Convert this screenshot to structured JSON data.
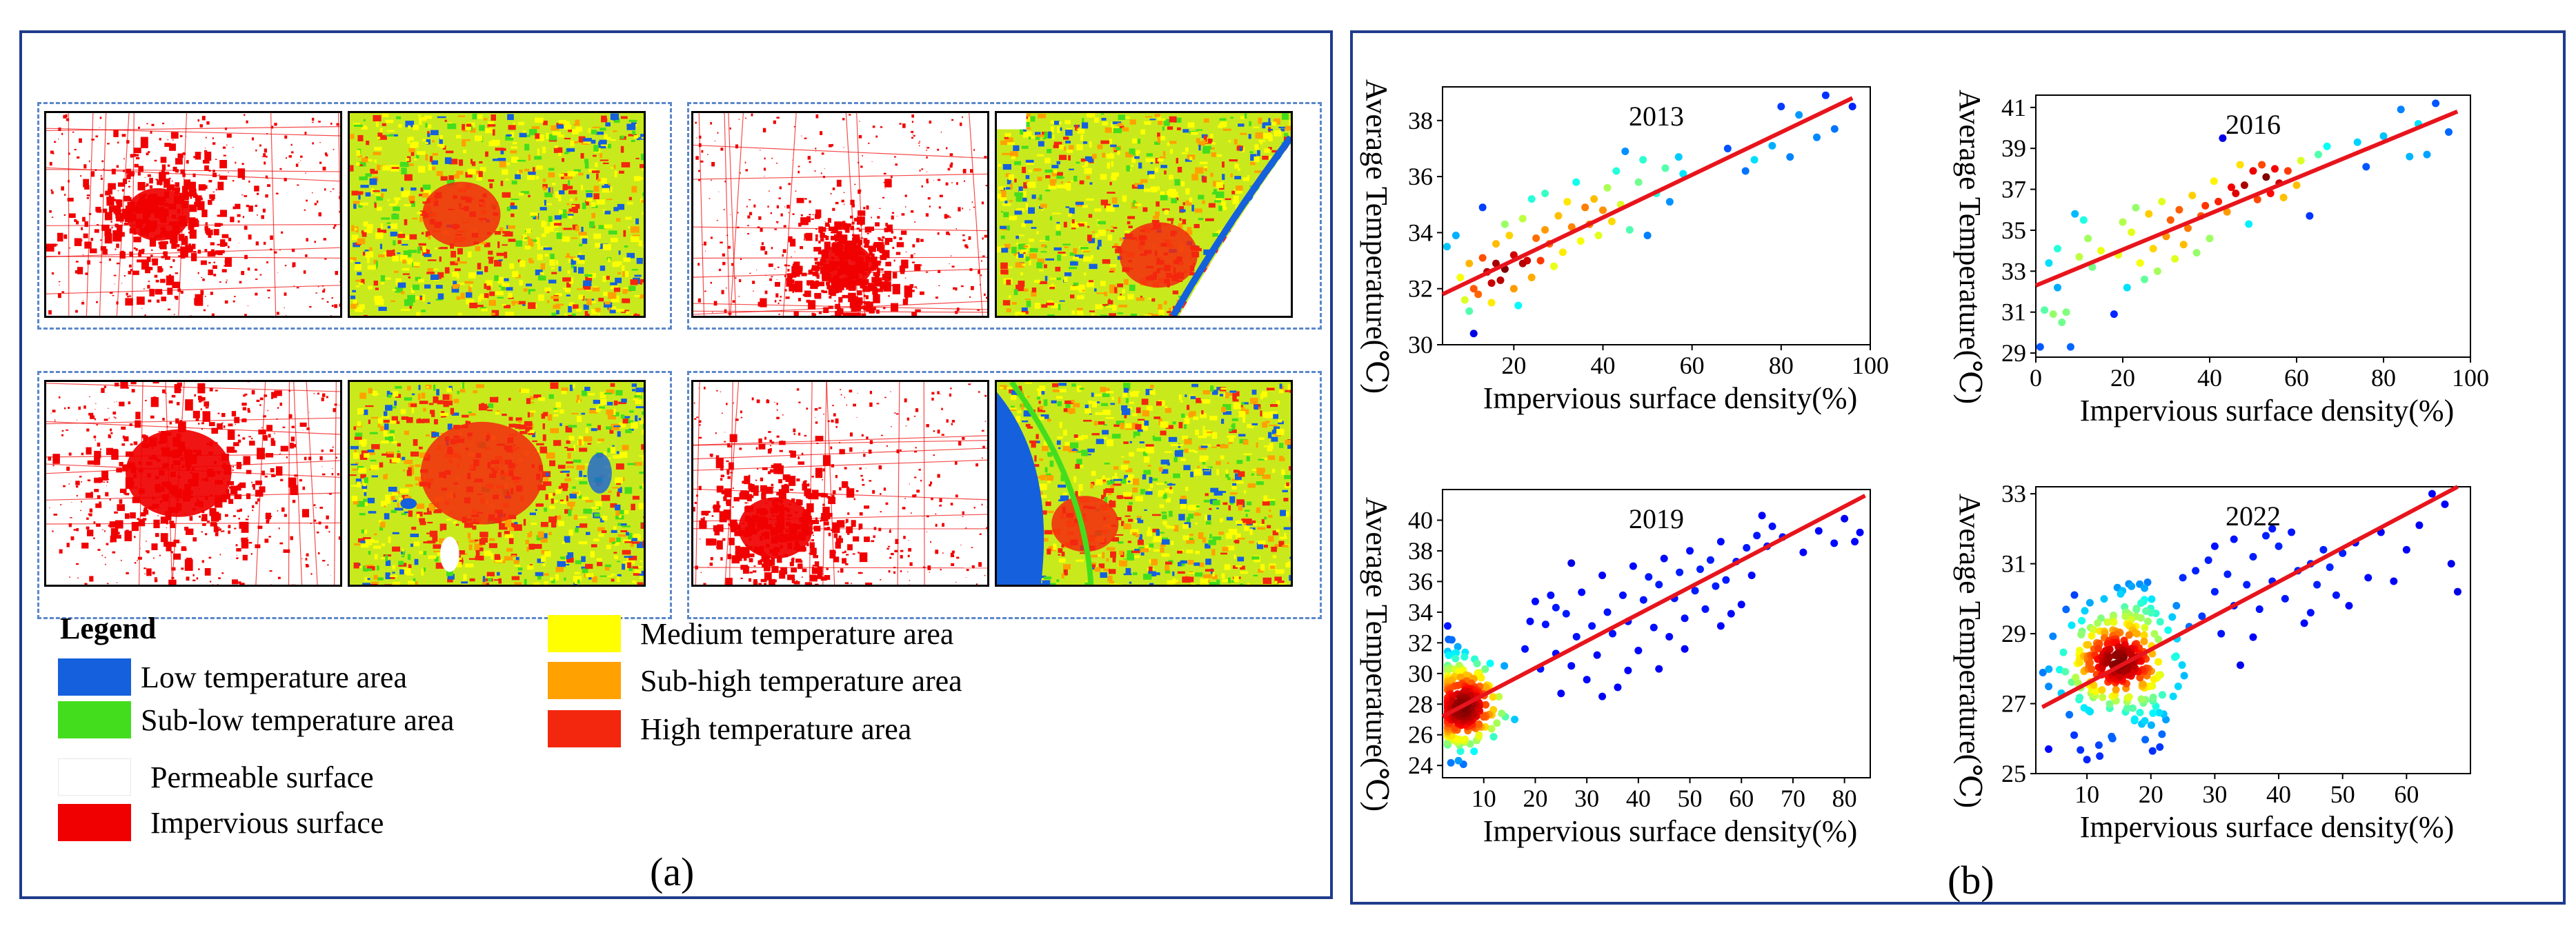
{
  "caption_a": "(a)",
  "caption_b": "(b)",
  "legend": {
    "title": "Legend",
    "items": [
      {
        "label": "Low temperature area",
        "color": "#1560dd"
      },
      {
        "label": "Sub-low temperature area",
        "color": "#44dd1e"
      },
      {
        "label": "Permeable surface",
        "color": "#ffffff"
      },
      {
        "label": "Impervious surface",
        "color": "#f00000"
      },
      {
        "label": "Medium temperature area",
        "color": "#ffff00"
      },
      {
        "label": "Sub-high temperature area",
        "color": "#ffa100"
      },
      {
        "label": "High temperature area",
        "color": "#f3270e"
      }
    ]
  },
  "maps": [
    {
      "region": 1,
      "kind": "impervious"
    },
    {
      "region": 1,
      "kind": "temperature"
    },
    {
      "region": 2,
      "kind": "impervious"
    },
    {
      "region": 2,
      "kind": "temperature"
    },
    {
      "region": 3,
      "kind": "impervious"
    },
    {
      "region": 3,
      "kind": "temperature"
    },
    {
      "region": 4,
      "kind": "impervious"
    },
    {
      "region": 4,
      "kind": "temperature"
    }
  ],
  "chart_data": [
    {
      "type": "scatter",
      "title": "2013",
      "xlabel": "Impervious surface density(%)",
      "ylabel": "Average Temperature(℃)",
      "xlim": [
        4,
        100
      ],
      "ylim": [
        30,
        39.2
      ],
      "xticks": [
        20,
        40,
        60,
        80,
        100
      ],
      "yticks": [
        30,
        32,
        34,
        36,
        38
      ],
      "fit_line": {
        "x": [
          4,
          96
        ],
        "y": [
          31.8,
          38.8
        ],
        "color": "#e8141c"
      },
      "points": [
        {
          "x": 5,
          "y": 33.5
        },
        {
          "x": 7,
          "y": 33.9
        },
        {
          "x": 8,
          "y": 32.4
        },
        {
          "x": 9,
          "y": 31.6
        },
        {
          "x": 10,
          "y": 31.2
        },
        {
          "x": 10,
          "y": 32.9
        },
        {
          "x": 11,
          "y": 32.0
        },
        {
          "x": 11,
          "y": 30.4
        },
        {
          "x": 12,
          "y": 31.8
        },
        {
          "x": 13,
          "y": 33.1
        },
        {
          "x": 13,
          "y": 34.9
        },
        {
          "x": 14,
          "y": 32.6
        },
        {
          "x": 15,
          "y": 31.5
        },
        {
          "x": 15,
          "y": 32.2
        },
        {
          "x": 16,
          "y": 33.6
        },
        {
          "x": 16,
          "y": 32.9
        },
        {
          "x": 17,
          "y": 32.3
        },
        {
          "x": 18,
          "y": 34.3
        },
        {
          "x": 18,
          "y": 32.7
        },
        {
          "x": 19,
          "y": 33.9
        },
        {
          "x": 20,
          "y": 33.2
        },
        {
          "x": 20,
          "y": 32.0
        },
        {
          "x": 21,
          "y": 31.4
        },
        {
          "x": 22,
          "y": 32.9
        },
        {
          "x": 22,
          "y": 34.5
        },
        {
          "x": 23,
          "y": 33.0
        },
        {
          "x": 24,
          "y": 32.4
        },
        {
          "x": 24,
          "y": 35.2
        },
        {
          "x": 25,
          "y": 33.8
        },
        {
          "x": 26,
          "y": 33.0
        },
        {
          "x": 27,
          "y": 34.1
        },
        {
          "x": 27,
          "y": 35.4
        },
        {
          "x": 28,
          "y": 33.6
        },
        {
          "x": 29,
          "y": 32.8
        },
        {
          "x": 30,
          "y": 34.6
        },
        {
          "x": 31,
          "y": 33.3
        },
        {
          "x": 32,
          "y": 35.1
        },
        {
          "x": 33,
          "y": 34.2
        },
        {
          "x": 34,
          "y": 35.8
        },
        {
          "x": 35,
          "y": 33.7
        },
        {
          "x": 36,
          "y": 34.9
        },
        {
          "x": 37,
          "y": 34.3
        },
        {
          "x": 38,
          "y": 35.2
        },
        {
          "x": 39,
          "y": 33.9
        },
        {
          "x": 40,
          "y": 34.8
        },
        {
          "x": 41,
          "y": 35.6
        },
        {
          "x": 42,
          "y": 34.4
        },
        {
          "x": 43,
          "y": 36.2
        },
        {
          "x": 44,
          "y": 35.0
        },
        {
          "x": 45,
          "y": 36.9
        },
        {
          "x": 46,
          "y": 34.1
        },
        {
          "x": 48,
          "y": 35.8
        },
        {
          "x": 49,
          "y": 36.6
        },
        {
          "x": 50,
          "y": 33.9
        },
        {
          "x": 52,
          "y": 35.4
        },
        {
          "x": 54,
          "y": 36.3
        },
        {
          "x": 55,
          "y": 35.1
        },
        {
          "x": 57,
          "y": 36.7
        },
        {
          "x": 58,
          "y": 36.1
        },
        {
          "x": 68,
          "y": 37.0
        },
        {
          "x": 72,
          "y": 36.2
        },
        {
          "x": 74,
          "y": 36.6
        },
        {
          "x": 78,
          "y": 37.1
        },
        {
          "x": 80,
          "y": 38.5
        },
        {
          "x": 82,
          "y": 36.7
        },
        {
          "x": 84,
          "y": 38.2
        },
        {
          "x": 88,
          "y": 37.4
        },
        {
          "x": 90,
          "y": 38.9
        },
        {
          "x": 92,
          "y": 37.7
        },
        {
          "x": 96,
          "y": 38.5
        }
      ]
    },
    {
      "type": "scatter",
      "title": "2016",
      "xlabel": "Impervious surface density(%)",
      "ylabel": "Average Temperature(℃)",
      "xlim": [
        0,
        100
      ],
      "ylim": [
        28.8,
        41.6
      ],
      "xticks": [
        0,
        20,
        40,
        60,
        80,
        100
      ],
      "yticks": [
        29,
        31,
        33,
        35,
        37,
        39,
        41
      ],
      "fit_line": {
        "x": [
          0,
          97
        ],
        "y": [
          32.3,
          40.8
        ],
        "color": "#e8141c"
      },
      "points": [
        {
          "x": 1,
          "y": 29.3
        },
        {
          "x": 2,
          "y": 31.1
        },
        {
          "x": 3,
          "y": 33.4
        },
        {
          "x": 4,
          "y": 30.9
        },
        {
          "x": 5,
          "y": 32.2
        },
        {
          "x": 5,
          "y": 34.1
        },
        {
          "x": 6,
          "y": 30.5
        },
        {
          "x": 7,
          "y": 31.0
        },
        {
          "x": 8,
          "y": 29.3
        },
        {
          "x": 9,
          "y": 35.8
        },
        {
          "x": 10,
          "y": 33.7
        },
        {
          "x": 11,
          "y": 35.5
        },
        {
          "x": 12,
          "y": 34.6
        },
        {
          "x": 13,
          "y": 33.2
        },
        {
          "x": 15,
          "y": 34.0
        },
        {
          "x": 18,
          "y": 30.9
        },
        {
          "x": 19,
          "y": 33.8
        },
        {
          "x": 20,
          "y": 35.4
        },
        {
          "x": 21,
          "y": 32.2
        },
        {
          "x": 22,
          "y": 34.9
        },
        {
          "x": 23,
          "y": 36.1
        },
        {
          "x": 24,
          "y": 33.4
        },
        {
          "x": 25,
          "y": 32.6
        },
        {
          "x": 26,
          "y": 35.8
        },
        {
          "x": 27,
          "y": 34.1
        },
        {
          "x": 28,
          "y": 33.0
        },
        {
          "x": 29,
          "y": 36.4
        },
        {
          "x": 30,
          "y": 34.7
        },
        {
          "x": 31,
          "y": 35.5
        },
        {
          "x": 32,
          "y": 33.6
        },
        {
          "x": 33,
          "y": 36.0
        },
        {
          "x": 34,
          "y": 34.3
        },
        {
          "x": 35,
          "y": 35.1
        },
        {
          "x": 36,
          "y": 36.7
        },
        {
          "x": 37,
          "y": 33.9
        },
        {
          "x": 38,
          "y": 35.7
        },
        {
          "x": 39,
          "y": 36.2
        },
        {
          "x": 40,
          "y": 34.6
        },
        {
          "x": 41,
          "y": 37.4
        },
        {
          "x": 42,
          "y": 36.4
        },
        {
          "x": 43,
          "y": 39.5
        },
        {
          "x": 44,
          "y": 35.9
        },
        {
          "x": 45,
          "y": 37.1
        },
        {
          "x": 46,
          "y": 36.8
        },
        {
          "x": 47,
          "y": 38.2
        },
        {
          "x": 48,
          "y": 37.2
        },
        {
          "x": 49,
          "y": 35.3
        },
        {
          "x": 50,
          "y": 37.9
        },
        {
          "x": 51,
          "y": 36.5
        },
        {
          "x": 52,
          "y": 38.2
        },
        {
          "x": 53,
          "y": 37.6
        },
        {
          "x": 54,
          "y": 36.8
        },
        {
          "x": 55,
          "y": 38.0
        },
        {
          "x": 56,
          "y": 37.3
        },
        {
          "x": 57,
          "y": 36.6
        },
        {
          "x": 58,
          "y": 37.9
        },
        {
          "x": 60,
          "y": 37.2
        },
        {
          "x": 61,
          "y": 38.4
        },
        {
          "x": 63,
          "y": 35.7
        },
        {
          "x": 65,
          "y": 38.7
        },
        {
          "x": 67,
          "y": 39.1
        },
        {
          "x": 74,
          "y": 39.3
        },
        {
          "x": 76,
          "y": 38.1
        },
        {
          "x": 80,
          "y": 39.6
        },
        {
          "x": 84,
          "y": 40.9
        },
        {
          "x": 86,
          "y": 38.6
        },
        {
          "x": 88,
          "y": 40.2
        },
        {
          "x": 90,
          "y": 38.7
        },
        {
          "x": 92,
          "y": 41.2
        },
        {
          "x": 95,
          "y": 39.8
        }
      ]
    },
    {
      "type": "scatter",
      "title": "2019",
      "xlabel": "Impervious surface density(%)",
      "ylabel": "Average Temperature(℃)",
      "xlim": [
        2,
        85
      ],
      "ylim": [
        23.2,
        42
      ],
      "xticks": [
        10,
        20,
        30,
        40,
        50,
        60,
        70,
        80
      ],
      "yticks": [
        24,
        26,
        28,
        30,
        32,
        34,
        36,
        38,
        40
      ],
      "fit_line": {
        "x": [
          2,
          84
        ],
        "y": [
          27.2,
          41.6
        ],
        "color": "#e8141c"
      },
      "cluster": {
        "x": 6,
        "y": 28,
        "sx": 3,
        "sy": 1.6,
        "n": 260,
        "seed": 19
      },
      "points": [
        {
          "x": 14,
          "y": 30.5
        },
        {
          "x": 16,
          "y": 27.0
        },
        {
          "x": 18,
          "y": 31.6
        },
        {
          "x": 19,
          "y": 33.4
        },
        {
          "x": 20,
          "y": 34.7
        },
        {
          "x": 21,
          "y": 30.3
        },
        {
          "x": 22,
          "y": 33.2
        },
        {
          "x": 23,
          "y": 35.1
        },
        {
          "x": 24,
          "y": 31.3
        },
        {
          "x": 25,
          "y": 28.7
        },
        {
          "x": 26,
          "y": 33.9
        },
        {
          "x": 27,
          "y": 30.5
        },
        {
          "x": 28,
          "y": 32.4
        },
        {
          "x": 29,
          "y": 35.3
        },
        {
          "x": 30,
          "y": 29.6
        },
        {
          "x": 31,
          "y": 33.1
        },
        {
          "x": 32,
          "y": 31.2
        },
        {
          "x": 33,
          "y": 36.4
        },
        {
          "x": 34,
          "y": 34.0
        },
        {
          "x": 35,
          "y": 32.6
        },
        {
          "x": 36,
          "y": 29.1
        },
        {
          "x": 37,
          "y": 35.1
        },
        {
          "x": 38,
          "y": 33.4
        },
        {
          "x": 39,
          "y": 37.0
        },
        {
          "x": 40,
          "y": 31.5
        },
        {
          "x": 41,
          "y": 34.8
        },
        {
          "x": 42,
          "y": 36.3
        },
        {
          "x": 43,
          "y": 33.0
        },
        {
          "x": 44,
          "y": 35.8
        },
        {
          "x": 45,
          "y": 37.5
        },
        {
          "x": 46,
          "y": 32.4
        },
        {
          "x": 47,
          "y": 34.9
        },
        {
          "x": 48,
          "y": 36.6
        },
        {
          "x": 49,
          "y": 33.6
        },
        {
          "x": 50,
          "y": 38.0
        },
        {
          "x": 51,
          "y": 35.4
        },
        {
          "x": 52,
          "y": 36.8
        },
        {
          "x": 53,
          "y": 34.2
        },
        {
          "x": 54,
          "y": 37.4
        },
        {
          "x": 55,
          "y": 35.7
        },
        {
          "x": 56,
          "y": 38.6
        },
        {
          "x": 57,
          "y": 36.1
        },
        {
          "x": 58,
          "y": 33.9
        },
        {
          "x": 59,
          "y": 37.3
        },
        {
          "x": 60,
          "y": 34.5
        },
        {
          "x": 61,
          "y": 38.2
        },
        {
          "x": 62,
          "y": 36.4
        },
        {
          "x": 63,
          "y": 39.0
        },
        {
          "x": 64,
          "y": 40.3
        },
        {
          "x": 65,
          "y": 38.3
        },
        {
          "x": 66,
          "y": 39.6
        },
        {
          "x": 68,
          "y": 38.9
        },
        {
          "x": 72,
          "y": 37.9
        },
        {
          "x": 75,
          "y": 39.3
        },
        {
          "x": 78,
          "y": 38.5
        },
        {
          "x": 80,
          "y": 40.1
        },
        {
          "x": 82,
          "y": 38.6
        },
        {
          "x": 83,
          "y": 39.2
        },
        {
          "x": 27,
          "y": 37.2
        },
        {
          "x": 44,
          "y": 30.3
        },
        {
          "x": 33,
          "y": 28.5
        },
        {
          "x": 49,
          "y": 31.6
        },
        {
          "x": 38,
          "y": 30.2
        },
        {
          "x": 24,
          "y": 34.3
        },
        {
          "x": 56,
          "y": 33.1
        }
      ]
    },
    {
      "type": "scatter",
      "title": "2022",
      "xlabel": "Impervious surface density(%)",
      "ylabel": "Average Temperature(℃)",
      "xlim": [
        2,
        70
      ],
      "ylim": [
        25,
        33.2
      ],
      "xticks": [
        10,
        20,
        30,
        40,
        50,
        60
      ],
      "yticks": [
        25,
        27,
        29,
        31,
        33
      ],
      "fit_line": {
        "x": [
          3,
          68
        ],
        "y": [
          26.9,
          33.2
        ],
        "color": "#e8141c"
      },
      "cluster": {
        "x": 15,
        "y": 28.2,
        "sx": 4,
        "sy": 0.9,
        "n": 300,
        "seed": 22
      },
      "points": [
        {
          "x": 4,
          "y": 25.7
        },
        {
          "x": 6,
          "y": 27.3
        },
        {
          "x": 8,
          "y": 26.1
        },
        {
          "x": 10,
          "y": 25.4
        },
        {
          "x": 12,
          "y": 25.5
        },
        {
          "x": 14,
          "y": 26.0
        },
        {
          "x": 22,
          "y": 26.7
        },
        {
          "x": 24,
          "y": 29.8
        },
        {
          "x": 25,
          "y": 30.6
        },
        {
          "x": 26,
          "y": 29.2
        },
        {
          "x": 27,
          "y": 30.8
        },
        {
          "x": 28,
          "y": 29.5
        },
        {
          "x": 29,
          "y": 31.1
        },
        {
          "x": 30,
          "y": 30.2
        },
        {
          "x": 31,
          "y": 29.0
        },
        {
          "x": 32,
          "y": 30.7
        },
        {
          "x": 33,
          "y": 31.7
        },
        {
          "x": 34,
          "y": 28.1
        },
        {
          "x": 35,
          "y": 30.4
        },
        {
          "x": 36,
          "y": 31.2
        },
        {
          "x": 37,
          "y": 29.7
        },
        {
          "x": 38,
          "y": 31.8
        },
        {
          "x": 39,
          "y": 30.5
        },
        {
          "x": 40,
          "y": 31.5
        },
        {
          "x": 41,
          "y": 30.0
        },
        {
          "x": 42,
          "y": 31.9
        },
        {
          "x": 43,
          "y": 30.8
        },
        {
          "x": 44,
          "y": 29.3
        },
        {
          "x": 45,
          "y": 31.0
        },
        {
          "x": 46,
          "y": 30.4
        },
        {
          "x": 47,
          "y": 31.4
        },
        {
          "x": 48,
          "y": 30.9
        },
        {
          "x": 49,
          "y": 30.1
        },
        {
          "x": 50,
          "y": 31.3
        },
        {
          "x": 51,
          "y": 29.8
        },
        {
          "x": 52,
          "y": 31.6
        },
        {
          "x": 54,
          "y": 30.6
        },
        {
          "x": 56,
          "y": 31.9
        },
        {
          "x": 58,
          "y": 30.5
        },
        {
          "x": 60,
          "y": 31.4
        },
        {
          "x": 62,
          "y": 32.1
        },
        {
          "x": 64,
          "y": 33.0
        },
        {
          "x": 66,
          "y": 32.7
        },
        {
          "x": 67,
          "y": 31.0
        },
        {
          "x": 68,
          "y": 30.2
        },
        {
          "x": 33,
          "y": 29.8
        },
        {
          "x": 36,
          "y": 28.9
        },
        {
          "x": 39,
          "y": 32.0
        },
        {
          "x": 45,
          "y": 29.6
        },
        {
          "x": 30,
          "y": 31.5
        }
      ]
    }
  ]
}
